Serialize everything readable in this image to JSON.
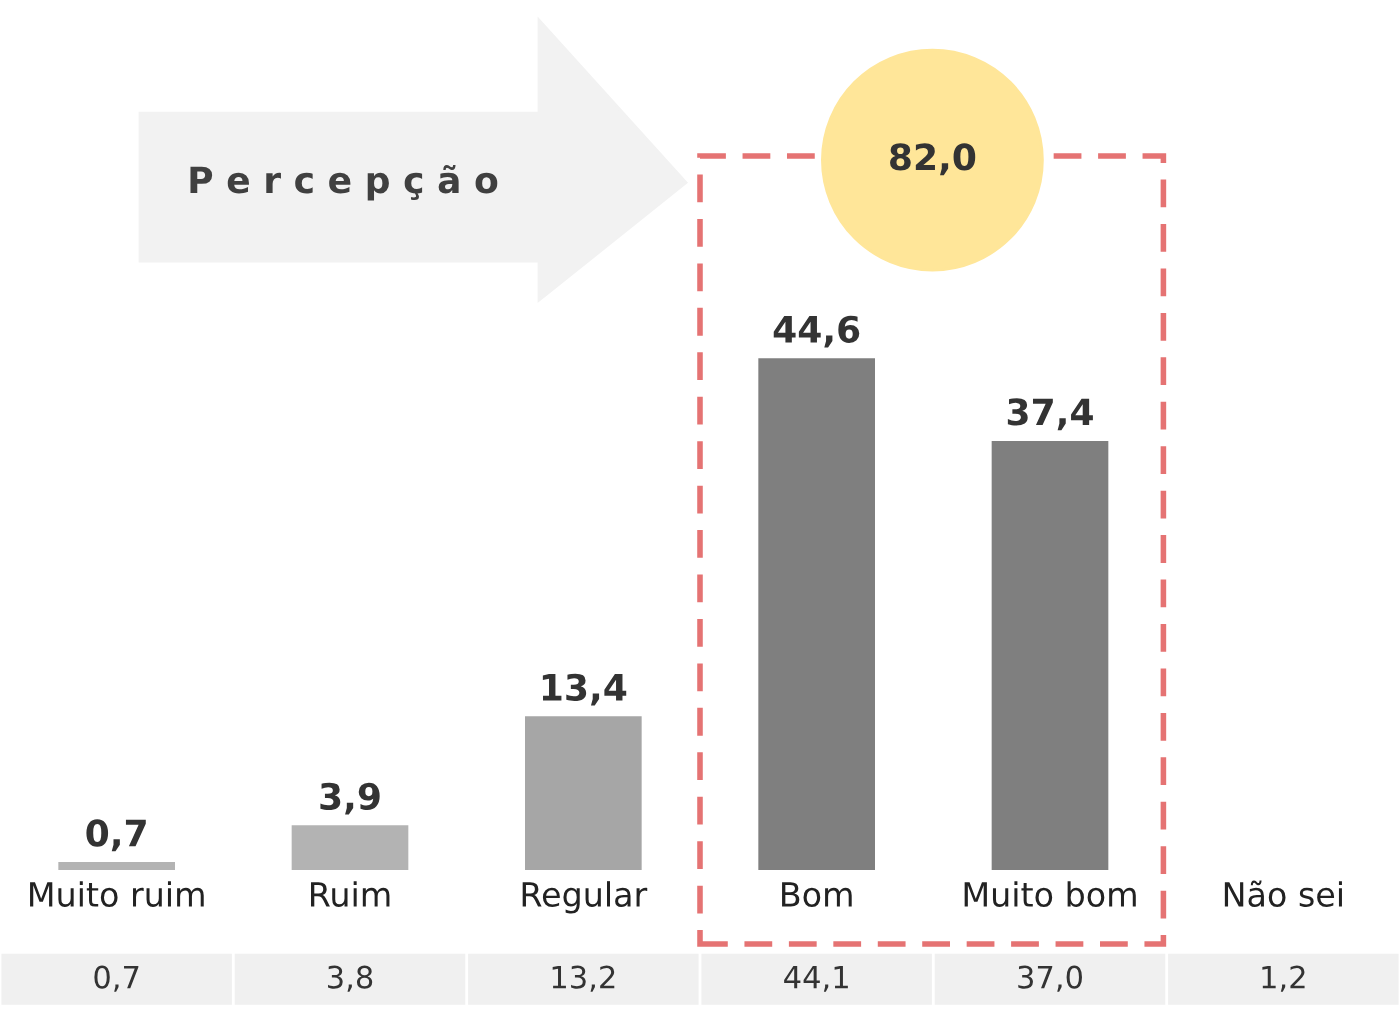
{
  "chart_data": {
    "type": "bar",
    "categories": [
      "Muito ruim",
      "Ruim",
      "Regular",
      "Bom",
      "Muito bom",
      "Não sei"
    ],
    "values": [
      0.7,
      3.9,
      13.4,
      44.6,
      37.4,
      null
    ],
    "colors": [
      "#b3b3b3",
      "#b3b3b3",
      "#a6a6a6",
      "#7f7f7f",
      "#7f7f7f",
      "#7f7f7f"
    ],
    "data_labels": true,
    "value_labels": [
      "0,7",
      "3,9",
      "13,4",
      "44,6",
      "37,4",
      null
    ],
    "annotations": [
      "P e r c e p ç ã o",
      "82,0",
      "0,7",
      "3,8",
      "13,2",
      "44,1",
      "37,0",
      "1,2"
    ],
    "grid": false,
    "legend": false
  }
}
